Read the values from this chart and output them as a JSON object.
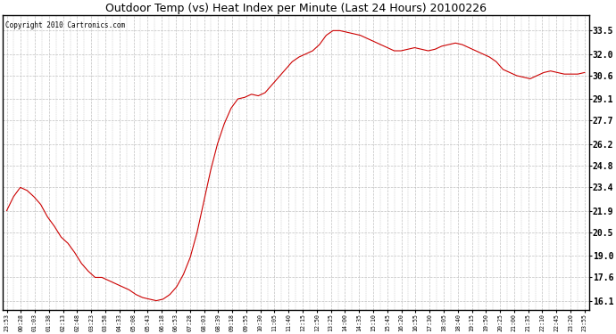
{
  "title": "Outdoor Temp (vs) Heat Index per Minute (Last 24 Hours) 20100226",
  "copyright": "Copyright 2010 Cartronics.com",
  "line_color": "#cc0000",
  "background_color": "#ffffff",
  "grid_color": "#c0c0c0",
  "yticks": [
    16.1,
    17.6,
    19.0,
    20.5,
    21.9,
    23.4,
    24.8,
    26.2,
    27.7,
    29.1,
    30.6,
    32.0,
    33.5
  ],
  "ylim": [
    15.5,
    34.5
  ],
  "xtick_labels": [
    "23:53",
    "00:28",
    "01:03",
    "01:38",
    "02:13",
    "02:48",
    "03:23",
    "03:58",
    "04:33",
    "05:08",
    "05:43",
    "06:18",
    "06:53",
    "07:28",
    "08:03",
    "08:39",
    "09:18",
    "09:55",
    "10:30",
    "11:05",
    "11:40",
    "12:15",
    "12:50",
    "13:25",
    "14:00",
    "14:35",
    "15:10",
    "15:45",
    "16:20",
    "16:55",
    "17:30",
    "18:05",
    "18:40",
    "19:15",
    "19:50",
    "20:25",
    "21:00",
    "21:35",
    "22:10",
    "22:45",
    "23:20",
    "23:55"
  ],
  "y_data": [
    21.9,
    22.8,
    23.4,
    23.2,
    22.8,
    22.3,
    21.5,
    20.9,
    20.2,
    19.8,
    19.2,
    18.5,
    18.0,
    17.6,
    17.6,
    17.4,
    17.2,
    17.0,
    16.8,
    16.5,
    16.3,
    16.2,
    16.1,
    16.2,
    16.5,
    17.0,
    17.8,
    18.9,
    20.5,
    22.5,
    24.5,
    26.2,
    27.5,
    28.5,
    29.1,
    29.2,
    29.4,
    29.3,
    29.5,
    30.0,
    30.5,
    31.0,
    31.5,
    31.8,
    32.0,
    32.2,
    32.6,
    33.2,
    33.5,
    33.5,
    33.4,
    33.3,
    33.2,
    33.0,
    32.8,
    32.6,
    32.4,
    32.2,
    32.2,
    32.3,
    32.4,
    32.3,
    32.2,
    32.3,
    32.5,
    32.6,
    32.7,
    32.6,
    32.4,
    32.2,
    32.0,
    31.8,
    31.5,
    31.0,
    30.8,
    30.6,
    30.5,
    30.4,
    30.6,
    30.8,
    30.9,
    30.8,
    30.7,
    30.7,
    30.7,
    30.8
  ]
}
